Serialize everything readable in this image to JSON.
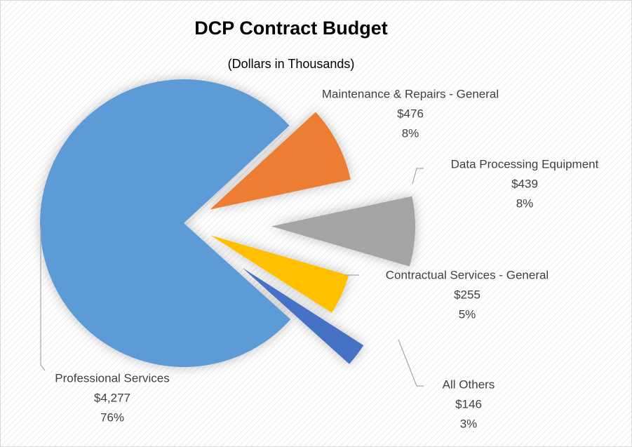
{
  "chart_data": {
    "type": "pie",
    "title": "DCP Contract Budget",
    "subtitle": "(Dollars in Thousands)",
    "categories": [
      "Professional Services",
      "Maintenance & Repairs - General",
      "Data Processing Equipment",
      "Contractual Services - General",
      "All Others"
    ],
    "values": [
      4277,
      476,
      439,
      255,
      146
    ],
    "value_labels": [
      "$4,277",
      "$476",
      "$439",
      "$255",
      "$146"
    ],
    "percent_labels": [
      "76%",
      "8%",
      "8%",
      "5%",
      "3%"
    ],
    "colors": [
      "#5b9bd5",
      "#ed7d31",
      "#a5a5a5",
      "#ffc000",
      "#4472c4"
    ]
  }
}
